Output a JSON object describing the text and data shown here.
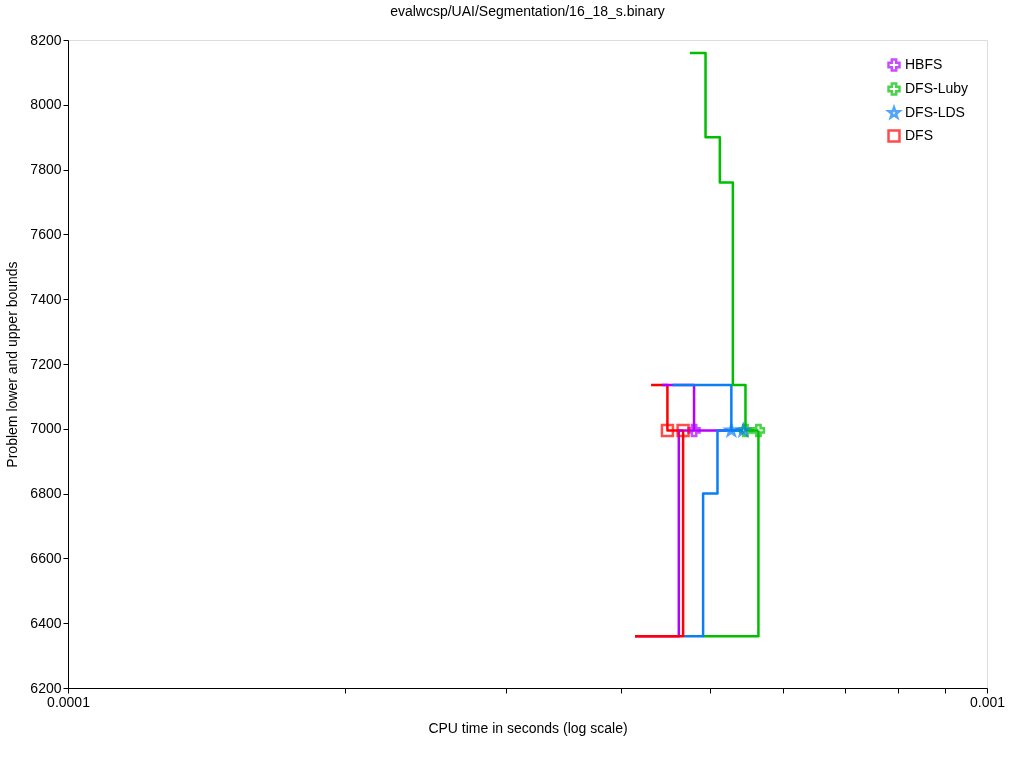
{
  "chart_data": {
    "type": "step",
    "title": "evalwcsp/UAI/Segmentation/16_18_s.binary",
    "xlabel": "CPU time in seconds (log scale)",
    "ylabel": "Problem lower and upper bounds",
    "log": "x",
    "grid": false,
    "legend": "top right",
    "line_style": "solid",
    "xlim": [
      0.0001,
      0.001
    ],
    "ylim": [
      6200,
      8200
    ],
    "xticks": [
      0.0001,
      {
        "value": 0.0002,
        "label": null
      },
      {
        "value": 0.0003,
        "label": null
      },
      {
        "value": 0.0004,
        "label": null
      },
      {
        "value": 0.0005,
        "label": null
      },
      {
        "value": 0.0006,
        "label": null
      },
      {
        "value": 0.0007,
        "label": null
      },
      {
        "value": 0.0008,
        "label": null
      },
      {
        "value": 0.0009,
        "label": null
      },
      0.001
    ],
    "yticks": [
      6200,
      6400,
      6600,
      6800,
      7000,
      7200,
      7400,
      7600,
      7800,
      8000,
      8200
    ],
    "series": [
      {
        "color": "#ff0000",
        "marker": "none",
        "x": [
          0.000431,
          0.000449,
          0.000467
        ],
        "values": [
          7135,
          6995,
          6995
        ]
      },
      {
        "color": "#b400ff",
        "marker": "none",
        "x": [
          0.000443,
          0.00048,
          0.000522
        ],
        "values": [
          7135,
          6995,
          6995
        ]
      },
      {
        "color": "#0a7ff5",
        "marker": "none",
        "x": [
          0.000455,
          0.000527,
          0.000543
        ],
        "values": [
          7135,
          6995,
          6995
        ]
      },
      {
        "color": "#b400ff",
        "marker": "none",
        "x": [
          0.000414,
          0.000462,
          0.00048
        ],
        "values": [
          6360,
          6995,
          6995
        ]
      },
      {
        "color": "#00bf00",
        "marker": "none",
        "x": [
          0.000475,
          0.000494,
          0.000512,
          0.000529,
          0.000546,
          0.000564
        ],
        "values": [
          8160,
          7900,
          7760,
          7135,
          6995,
          6995
        ]
      },
      {
        "color": "#00bf00",
        "marker": "none",
        "x": [
          0.000491,
          0.000564
        ],
        "values": [
          6360,
          6995
        ]
      },
      {
        "color": "#0a7ff5",
        "marker": "none",
        "x": [
          0.000468,
          0.000491,
          0.000509,
          0.000543
        ],
        "values": [
          6360,
          6800,
          6995,
          6995
        ]
      },
      {
        "color": "#ff0000",
        "marker": "none",
        "x": [
          0.000414,
          0.000467
        ],
        "values": [
          6360,
          6995
        ]
      },
      {
        "type": "scatter",
        "name": "HBFS",
        "color": "#b400ff",
        "marker": "cross",
        "x": [
          0.00048
        ],
        "values": [
          6995
        ]
      },
      {
        "type": "scatter",
        "name": "DFS-Luby",
        "color": "#00bf00",
        "marker": "cross",
        "x": [
          0.000546,
          0.000564
        ],
        "values": [
          6995,
          6995
        ]
      },
      {
        "type": "scatter",
        "name": "DFS-LDS",
        "color": "#0a7ff5",
        "marker": "star",
        "x": [
          0.000527,
          0.000543
        ],
        "values": [
          6995,
          6995
        ]
      },
      {
        "type": "scatter",
        "name": "DFS",
        "color": "#ff0000",
        "marker": "square",
        "x": [
          0.000449,
          0.000467
        ],
        "values": [
          6995,
          6995
        ]
      }
    ]
  }
}
